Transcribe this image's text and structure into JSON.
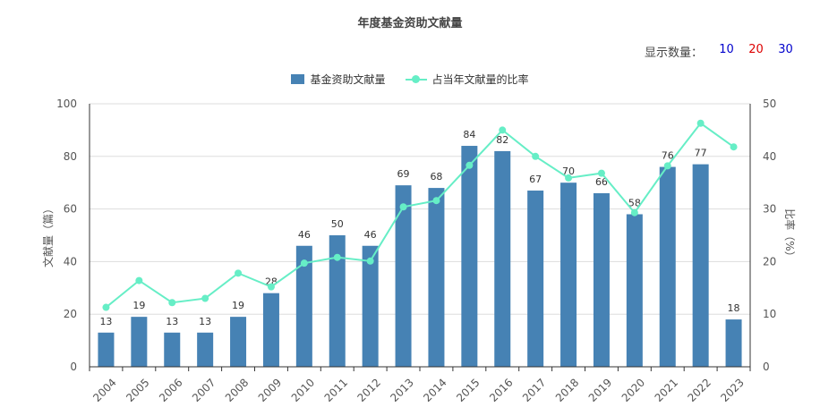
{
  "title": "年度基金资助文献量",
  "display_count": {
    "label": "显示数量：",
    "options": [
      "10",
      "20",
      "30"
    ],
    "option_colors": [
      "#0000cc",
      "#dd0000",
      "#0000cc"
    ]
  },
  "legend": {
    "bar": "基金资助文献量",
    "line": "占当年文献量的比率"
  },
  "chart_data": {
    "type": "bar",
    "title": "年度基金资助文献量",
    "categories": [
      "2004",
      "2005",
      "2006",
      "2007",
      "2008",
      "2009",
      "2010",
      "2011",
      "2012",
      "2013",
      "2014",
      "2015",
      "2016",
      "2017",
      "2018",
      "2019",
      "2020",
      "2021",
      "2022",
      "2023"
    ],
    "series": [
      {
        "name": "基金资助文献量",
        "type": "bar",
        "axis": "left",
        "color": "#4682b4",
        "values": [
          13,
          19,
          13,
          13,
          19,
          28,
          46,
          50,
          46,
          69,
          68,
          84,
          82,
          67,
          70,
          66,
          58,
          76,
          77,
          18
        ]
      },
      {
        "name": "占当年文献量的比率",
        "type": "line",
        "axis": "right",
        "color": "#66eec6",
        "values": [
          11.3,
          16.4,
          12.2,
          13.0,
          17.8,
          15.2,
          19.7,
          20.8,
          20.1,
          30.4,
          31.6,
          38.3,
          45.0,
          40.0,
          35.9,
          36.8,
          29.3,
          38.2,
          46.3,
          41.8
        ]
      }
    ],
    "ylabel": "文献量（篇）",
    "y2label": "比率（%）",
    "ylim": [
      0,
      100
    ],
    "y2lim": [
      0,
      50
    ],
    "yticks": [
      0,
      20,
      40,
      60,
      80,
      100
    ],
    "y2ticks": [
      0,
      10,
      20,
      30,
      40,
      50
    ],
    "grid": true,
    "legend_position": "top-center"
  }
}
